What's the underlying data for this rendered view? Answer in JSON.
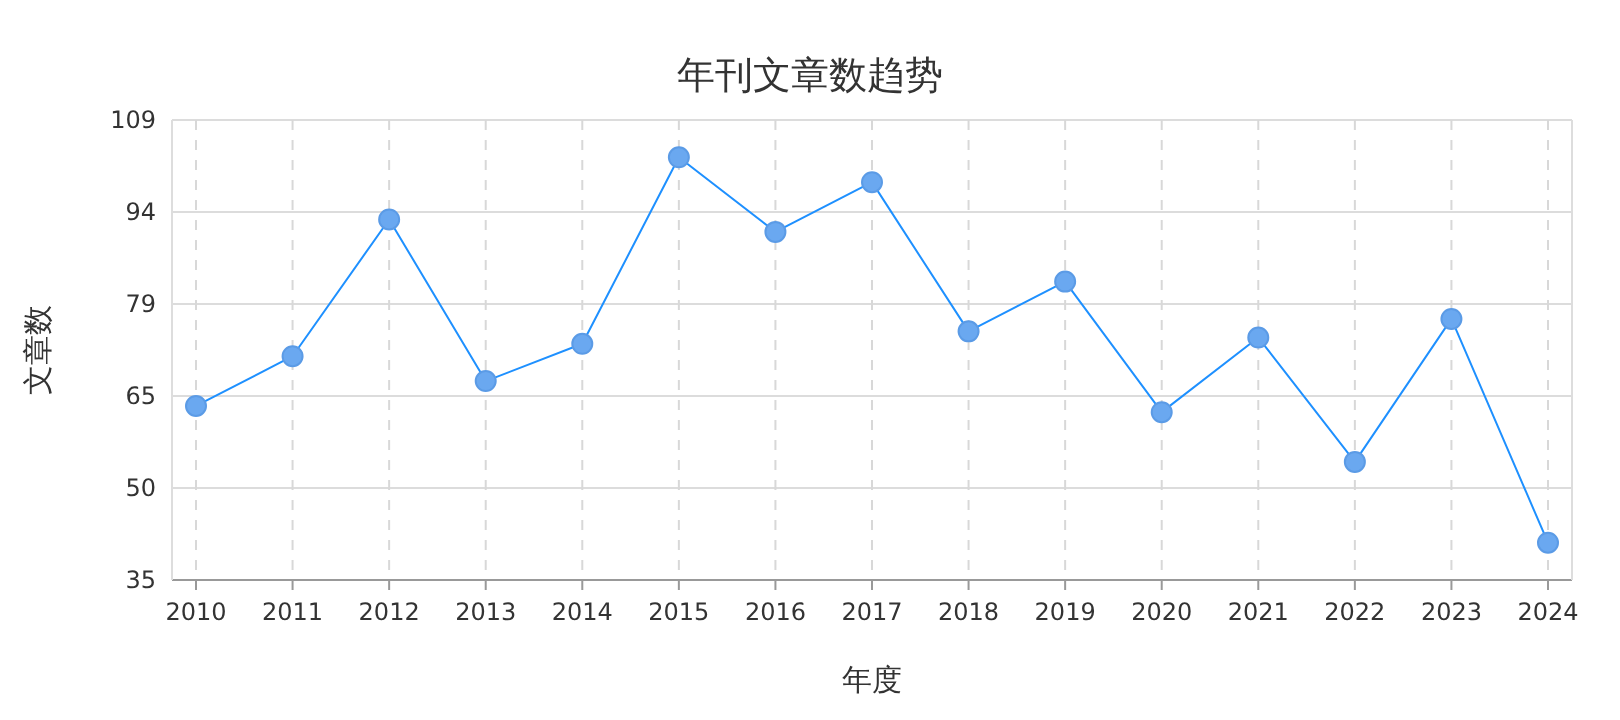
{
  "chart_data": {
    "type": "line",
    "title": "年刊文章数趋势",
    "xlabel": "年度",
    "ylabel": "文章数",
    "categories": [
      "2010",
      "2011",
      "2012",
      "2013",
      "2014",
      "2015",
      "2016",
      "2017",
      "2018",
      "2019",
      "2020",
      "2021",
      "2022",
      "2023",
      "2024"
    ],
    "series": [
      {
        "color": "#1e90ff",
        "values": [
          63,
          71,
          93,
          67,
          73,
          103,
          91,
          99,
          75,
          83,
          62,
          74,
          54,
          77,
          41
        ]
      }
    ],
    "ylim": [
      35,
      109
    ],
    "yticks": [
      35,
      {
        "value": 49.8,
        "label": "50"
      },
      {
        "value": 64.6,
        "label": "65"
      },
      {
        "value": 79.4,
        "label": "79"
      },
      {
        "value": 94.2,
        "label": "94"
      },
      109
    ],
    "grid": true,
    "marker": "circle",
    "line_style": "solid"
  }
}
